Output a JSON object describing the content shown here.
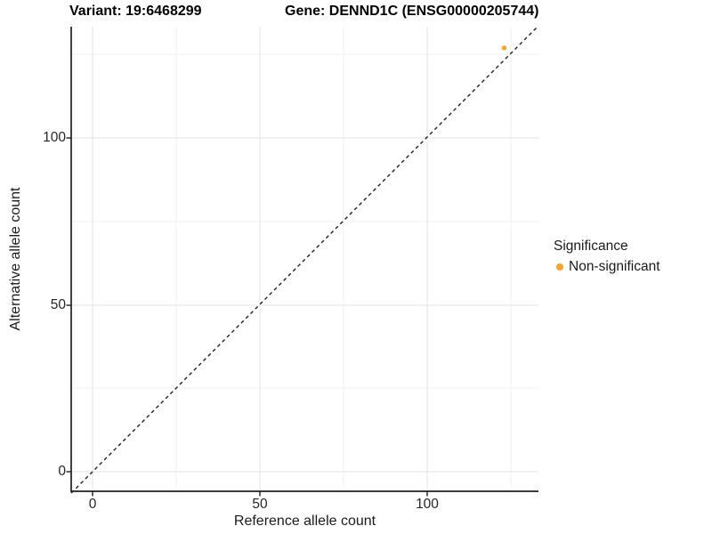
{
  "header": {
    "variant_title": "Variant: 19:6468299",
    "gene_title": "Gene: DENND1C (ENSG00000205744)"
  },
  "chart_data": {
    "type": "scatter",
    "title": "Variant: 19:6468299   Gene: DENND1C (ENSG00000205744)",
    "xlabel": "Reference allele count",
    "ylabel": "Alternative allele count",
    "xlim": [
      -6.5,
      133.5
    ],
    "ylim": [
      -6.5,
      133.5
    ],
    "x_ticks": [
      0,
      50,
      100
    ],
    "y_ticks": [
      0,
      50,
      100
    ],
    "x_tick_labels": [
      "0",
      "50",
      "100"
    ],
    "y_tick_labels": [
      "0",
      "50",
      "100"
    ],
    "grid": "major and minor, light gray on white",
    "reference_line": {
      "style": "dashed",
      "equation": "y = x",
      "color": "#202020"
    },
    "legend": {
      "title": "Significance",
      "position": "right",
      "items": [
        {
          "label": "Non-significant",
          "color": "#f8a42c"
        }
      ]
    },
    "series": [
      {
        "name": "Non-significant",
        "color": "#f8a42c",
        "points": [
          {
            "x": 123,
            "y": 127
          }
        ]
      }
    ],
    "points": [
      {
        "x": 123,
        "y": 127,
        "series": "Non-significant",
        "color": "#f8a42c"
      }
    ]
  },
  "colors": {
    "point_orange": "#f8a42c",
    "axis_line": "#1f1f1f",
    "grid_major": "#e3e3e3",
    "grid_minor": "#f0f0f0",
    "background": "#ffffff"
  }
}
